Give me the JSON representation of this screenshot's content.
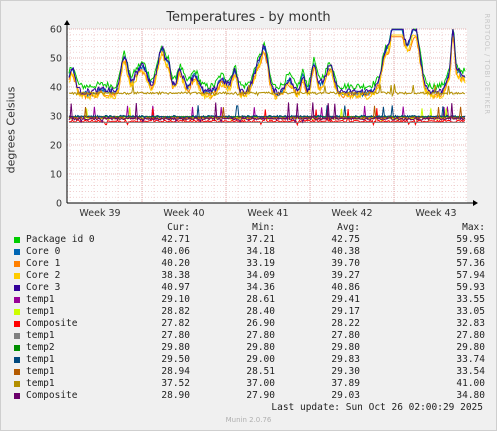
{
  "chart_data": {
    "type": "line",
    "title": "Temperatures - by month",
    "ylabel": "degrees Celsius",
    "ylim": [
      0,
      60
    ],
    "yticks": [
      0,
      10,
      20,
      30,
      40,
      50,
      60
    ],
    "xlabels": [
      "Week 39",
      "Week 40",
      "Week 41",
      "Week 42",
      "Week 43"
    ],
    "grid": true,
    "legend_position": "bottom",
    "columns": {
      "cur": "Cur:",
      "min": "Min:",
      "avg": "Avg:",
      "max": "Max:"
    },
    "series": [
      {
        "name": "Package id 0",
        "color": "#00cc00",
        "cur": "42.71",
        "min": "37.21",
        "avg": "42.75",
        "max": "59.95"
      },
      {
        "name": "Core 0",
        "color": "#0066b3",
        "cur": "40.06",
        "min": "34.18",
        "avg": "40.38",
        "max": "59.68"
      },
      {
        "name": "Core 1",
        "color": "#ff8000",
        "cur": "40.20",
        "min": "33.19",
        "avg": "39.70",
        "max": "57.36"
      },
      {
        "name": "Core 2",
        "color": "#ffcc00",
        "cur": "38.38",
        "min": "34.09",
        "avg": "39.27",
        "max": "57.94"
      },
      {
        "name": "Core 3",
        "color": "#330099",
        "cur": "40.97",
        "min": "34.36",
        "avg": "40.86",
        "max": "59.93"
      },
      {
        "name": "temp1",
        "color": "#990099",
        "cur": "29.10",
        "min": "28.61",
        "avg": "29.41",
        "max": "33.55"
      },
      {
        "name": "temp1",
        "color": "#ccff00",
        "cur": "28.82",
        "min": "28.40",
        "avg": "29.17",
        "max": "33.05"
      },
      {
        "name": "Composite",
        "color": "#ff0000",
        "cur": "27.82",
        "min": "26.90",
        "avg": "28.22",
        "max": "32.83"
      },
      {
        "name": "temp1",
        "color": "#808080",
        "cur": "27.80",
        "min": "27.80",
        "avg": "27.80",
        "max": "27.80"
      },
      {
        "name": "temp2",
        "color": "#008f00",
        "cur": "29.80",
        "min": "29.80",
        "avg": "29.80",
        "max": "29.80"
      },
      {
        "name": "temp1",
        "color": "#00487d",
        "cur": "29.50",
        "min": "29.00",
        "avg": "29.83",
        "max": "33.74"
      },
      {
        "name": "temp1",
        "color": "#b35a00",
        "cur": "28.94",
        "min": "28.51",
        "avg": "29.30",
        "max": "33.54"
      },
      {
        "name": "temp1",
        "color": "#b38f00",
        "cur": "37.52",
        "min": "37.00",
        "avg": "37.89",
        "max": "41.00"
      },
      {
        "name": "Composite",
        "color": "#6b006b",
        "cur": "28.90",
        "min": "27.90",
        "avg": "29.03",
        "max": "34.80"
      }
    ]
  },
  "watermark": "RRDTOOL / TOBI OETIKER",
  "last_update": "Last update: Sun Oct 26 02:00:29 2025",
  "footer": "Munin 2.0.76"
}
